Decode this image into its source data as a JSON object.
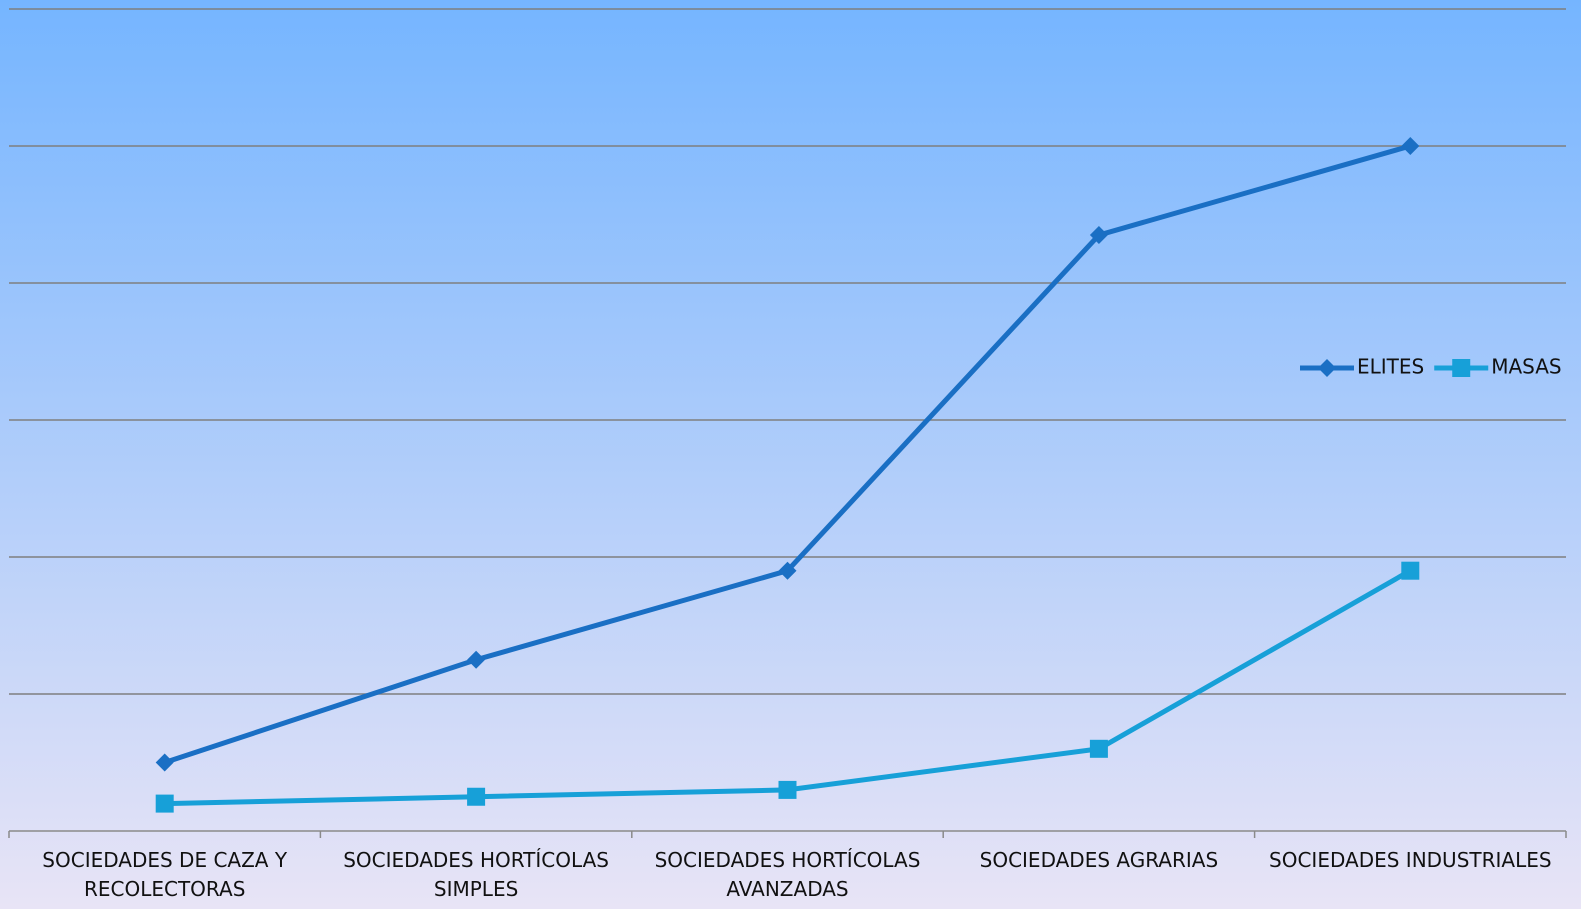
{
  "chart_data": {
    "type": "line",
    "categories": [
      "SOCIEDADES DE CAZA Y RECOLECTORAS",
      "SOCIEDADES HORTÍCOLAS SIMPLES",
      "SOCIEDADES HORTÍCOLAS AVANZADAS",
      "SOCIEDADES AGRARIAS",
      "SOCIEDADES INDUSTRIALES"
    ],
    "series": [
      {
        "name": "ELITES",
        "color": "#1a6fc4",
        "marker": "diamond",
        "values": [
          0.5,
          1.25,
          1.9,
          4.35,
          5
        ]
      },
      {
        "name": "MASAS",
        "color": "#17a0d8",
        "marker": "square",
        "values": [
          0.2,
          0.25,
          0.3,
          0.6,
          1.9
        ]
      }
    ],
    "ylim": [
      0,
      6
    ],
    "yticks": [
      0,
      1,
      2,
      3,
      4,
      5,
      6
    ],
    "grid": true,
    "legend": "right"
  }
}
